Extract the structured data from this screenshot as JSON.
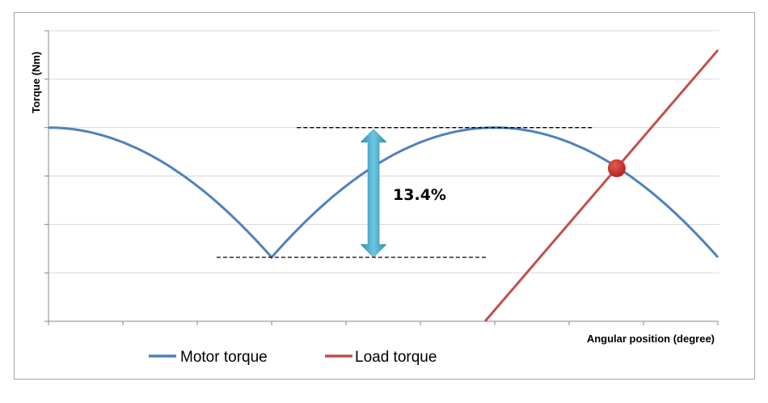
{
  "chart_data": {
    "type": "line",
    "title": "",
    "xlabel": "Angular position (degree)",
    "ylabel": "Torque (Nm)",
    "xlim": [
      0,
      90
    ],
    "ylim": [
      0.8,
      1.1
    ],
    "x_tick_count": 10,
    "y_gridlines": [
      0.8,
      0.85,
      0.9,
      0.95,
      1.0,
      1.05,
      1.1
    ],
    "grid": true,
    "tick_labels_shown": false,
    "legend_position": "bottom",
    "series": [
      {
        "name": "Motor torque",
        "color": "#4f81bd",
        "shape": "rectified cosine, peak 1.0 at 0/60 deg, minimum 0.866 at 30/90 deg",
        "x": [
          0,
          10,
          20,
          30,
          40,
          50,
          60,
          70,
          80,
          90
        ],
        "y": [
          1.0,
          0.985,
          0.94,
          0.866,
          0.94,
          0.985,
          1.0,
          0.985,
          0.94,
          0.866
        ]
      },
      {
        "name": "Load torque",
        "color": "#c0504d",
        "x": [
          58.7,
          90
        ],
        "y": [
          0.8,
          1.08
        ]
      }
    ],
    "annotations": [
      {
        "text": "13.4%",
        "type": "double-arrow",
        "from": 0.866,
        "to": 1.0,
        "x": 43.7,
        "color": "#4bacc6"
      },
      {
        "type": "dashed-line",
        "y": 1.0,
        "x": [
          33.4,
          73.4
        ]
      },
      {
        "type": "dashed-line",
        "y": 0.866,
        "x": [
          22.6,
          58.9
        ]
      },
      {
        "type": "marker",
        "x": 76.4,
        "y": 0.958,
        "color": "#c0302d"
      }
    ]
  }
}
